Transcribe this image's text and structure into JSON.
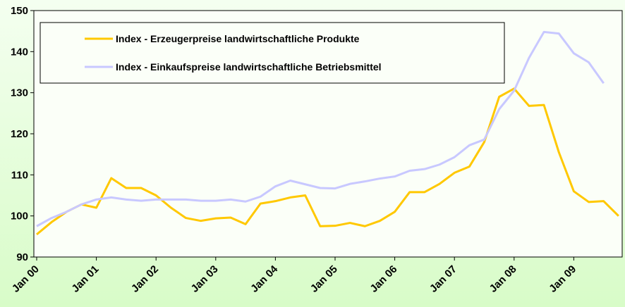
{
  "chart_data": {
    "type": "line",
    "categories": [
      "Jan 00",
      null,
      null,
      null,
      "Jan 01",
      null,
      null,
      null,
      "Jan 02",
      null,
      null,
      null,
      "Jan 03",
      null,
      null,
      null,
      "Jan 04",
      null,
      null,
      null,
      "Jan 05",
      null,
      null,
      null,
      "Jan 06",
      null,
      null,
      null,
      "Jan 07",
      null,
      null,
      null,
      "Jan 08",
      null,
      null,
      null,
      "Jan 09",
      null,
      null,
      null
    ],
    "series": [
      {
        "name": "Index - Erzeugerpreise landwirtschaftliche Produkte",
        "color": "#ffc800",
        "values": [
          95.5,
          98.5,
          101,
          102.8,
          102,
          109.2,
          106.8,
          106.8,
          105,
          102,
          99.5,
          98.8,
          99.4,
          99.6,
          98,
          103,
          103.6,
          104.5,
          105,
          97.5,
          97.6,
          98.3,
          97.5,
          98.8,
          101,
          105.8,
          105.8,
          107.8,
          110.5,
          112,
          118,
          129,
          131,
          126.8,
          127,
          115.5,
          106,
          103.4,
          103.6,
          100
        ]
      },
      {
        "name": "Index - Einkaufspreise landwirtschaftliche Betriebsmittel",
        "color": "#c8c8ff",
        "values": [
          97.5,
          99.5,
          101,
          102.8,
          104,
          104.5,
          104,
          103.7,
          104,
          104,
          104,
          103.7,
          103.7,
          104,
          103.5,
          104.7,
          107.2,
          108.6,
          107.7,
          106.8,
          106.7,
          107.8,
          108.4,
          109.1,
          109.6,
          111,
          111.4,
          112.5,
          114.3,
          117.2,
          118.6,
          126,
          130.5,
          138.5,
          144.8,
          144.4,
          139.6,
          137.4,
          132.3,
          null
        ]
      }
    ],
    "ylim": [
      90,
      150
    ],
    "yticks": [
      90,
      100,
      110,
      120,
      130,
      140,
      150
    ]
  }
}
